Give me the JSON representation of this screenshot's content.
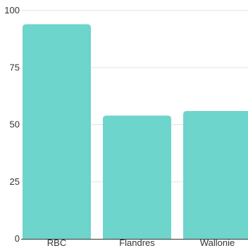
{
  "chart_data": {
    "type": "bar",
    "categories": [
      "RBC",
      "Flandres",
      "Wallonie"
    ],
    "values": [
      94,
      54,
      56
    ],
    "ylim": [
      0,
      100
    ],
    "yticks": [
      0,
      25,
      50,
      75,
      100
    ],
    "grid": true,
    "legend": "none",
    "bar_color": "#6DD5CC",
    "grid_color": "#e3e3e3",
    "axis_color": "#333333"
  }
}
